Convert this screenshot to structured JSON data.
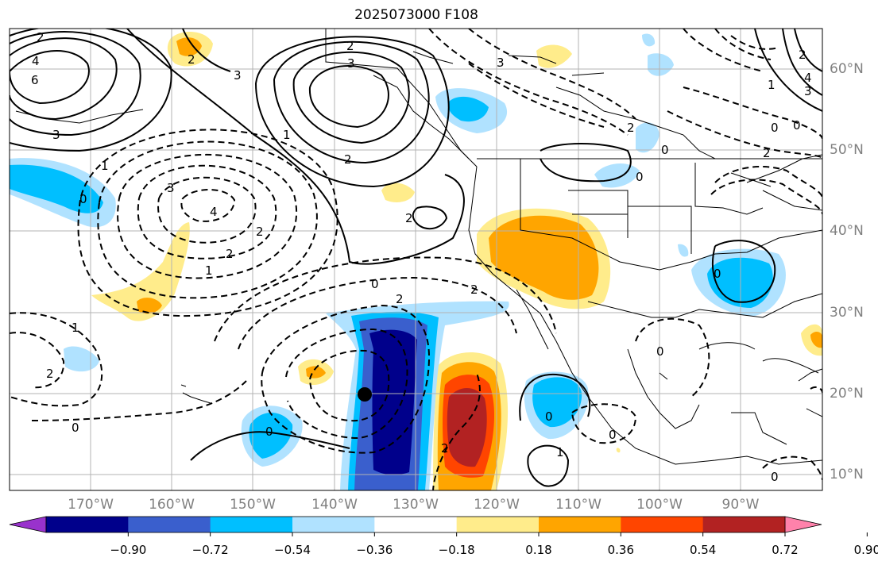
{
  "title": "2025073000 F108",
  "lat_labels": [
    "60°N",
    "50°N",
    "40°N",
    "30°N",
    "20°N",
    "10°N"
  ],
  "lon_labels": [
    "170°W",
    "160°W",
    "150°W",
    "140°W",
    "130°W",
    "120°W",
    "110°W",
    "100°W",
    "90°W"
  ],
  "colorbar": {
    "tick_labels": [
      "−0.90",
      "−0.72",
      "−0.54",
      "−0.36",
      "−0.18",
      "0.18",
      "0.36",
      "0.54",
      "0.72",
      "0.90"
    ],
    "colors": [
      "#9932cc",
      "#00008b",
      "#3a5fcd",
      "#00bfff",
      "#b0e2ff",
      "#ffffff",
      "#ffec8b",
      "#ffa500",
      "#ff4500",
      "#b22222",
      "#ff82ab"
    ]
  },
  "contour_labels": [
    "2",
    "4",
    "6",
    "3",
    "2",
    "3",
    "2",
    "1",
    "3",
    "3",
    "2",
    "1",
    "0",
    "0",
    "3",
    "4",
    "2",
    "2",
    "1",
    "1",
    "2",
    "0",
    "2",
    "2",
    "0",
    "0",
    "2",
    "0",
    "0",
    "1",
    "0",
    "0",
    "2",
    "0",
    "0",
    "2",
    "3",
    "2",
    "1",
    "0",
    "0",
    "2",
    "4"
  ],
  "marker": "storm center dot"
}
